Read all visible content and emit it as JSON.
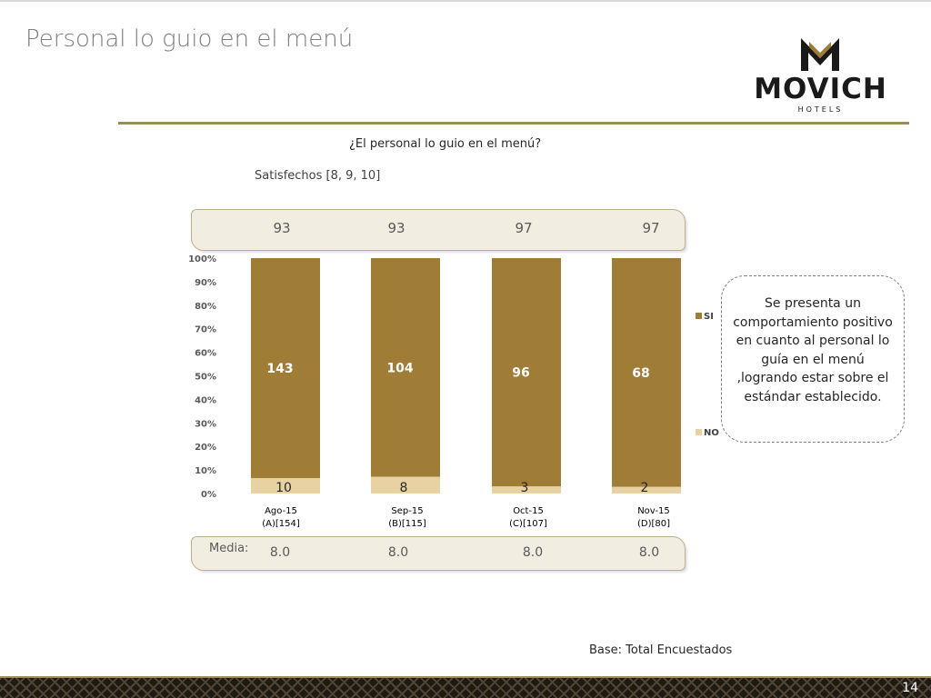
{
  "slide": {
    "title": "Personal lo guio en el menú",
    "question": "¿El personal lo guio en el menú?",
    "subtitle": "Satisfechos [8, 9, 10]",
    "media_label": "Media:",
    "base": "Base: Total Encuestados",
    "page_number": "14"
  },
  "logo": {
    "word": "MOVICH",
    "sub": "HOTELS"
  },
  "satisfied": [
    "93",
    "93",
    "97",
    "97"
  ],
  "media": [
    "8.0",
    "8.0",
    "8.0",
    "8.0"
  ],
  "periods": [
    {
      "month": "Ago-15",
      "base": "(A)[154]"
    },
    {
      "month": "Sep-15",
      "base": "(B)[115]"
    },
    {
      "month": "Oct-15",
      "base": "(C)[107]"
    },
    {
      "month": "Nov-15",
      "base": "(D)[80]"
    }
  ],
  "note": "Se presenta un comportamiento positivo en cuanto al personal lo guía en el menú ,logrando estar sobre el estándar establecido.",
  "colors": {
    "si": "#a07d36",
    "no": "#e8d2a4",
    "accent": "#9b8a5a"
  },
  "chart_data": {
    "type": "bar",
    "stacked": true,
    "normalized": true,
    "categories": [
      "Ago-15",
      "Sep-15",
      "Oct-15",
      "Nov-15"
    ],
    "series": [
      {
        "name": "NO",
        "values": [
          10,
          8,
          3,
          2
        ],
        "color": "#e8d2a4"
      },
      {
        "name": "SI",
        "values": [
          143,
          104,
          96,
          68
        ],
        "color": "#a07d36"
      }
    ],
    "yticks": [
      "0%",
      "10%",
      "20%",
      "30%",
      "40%",
      "50%",
      "60%",
      "70%",
      "80%",
      "90%",
      "100%"
    ],
    "ylim": [
      0,
      100
    ],
    "legend": "right",
    "grid": false
  }
}
